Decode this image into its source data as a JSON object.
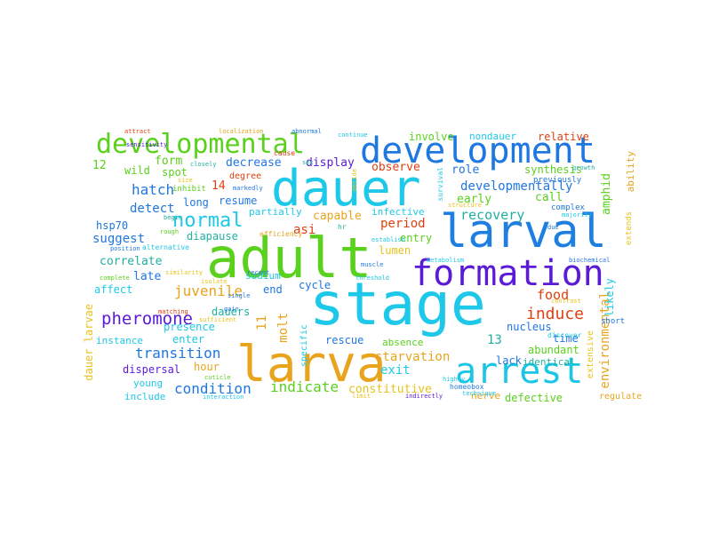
{
  "palette": {
    "blue": "#1f77e0",
    "cyan": "#19c6e6",
    "green": "#5ad11c",
    "purple": "#5a1ad6",
    "orange": "#e8a41c",
    "red": "#e04010",
    "teal": "#1fb0a0"
  },
  "words": [
    {
      "text": "stage",
      "color": "#1ec8e8"
    },
    {
      "text": "adult",
      "color": "#5ad11c"
    },
    {
      "text": "dauer",
      "color": "#1ec8e8"
    },
    {
      "text": "larva",
      "color": "#e8a41c"
    },
    {
      "text": "larval",
      "color": "#1f7fe0"
    },
    {
      "text": "development",
      "color": "#1f77e0"
    },
    {
      "text": "formation",
      "color": "#5a1ad6"
    },
    {
      "text": "arrest",
      "color": "#19c6e6"
    },
    {
      "text": "developmental",
      "color": "#5ad11c"
    },
    {
      "text": "normal",
      "color": "#1ec8e8"
    },
    {
      "text": "pheromone",
      "color": "#5a1ad6"
    },
    {
      "text": "induce",
      "color": "#e04010"
    },
    {
      "text": "juvenile",
      "color": "#e8a41c"
    },
    {
      "text": "transition",
      "color": "#1f77e0"
    },
    {
      "text": "condition",
      "color": "#1f77e0"
    },
    {
      "text": "indicate",
      "color": "#5ad11c"
    },
    {
      "text": "constitutive",
      "color": "#e8c21c"
    },
    {
      "text": "starvation",
      "color": "#e8a41c"
    },
    {
      "text": "environmental",
      "color": "#e8a41c"
    },
    {
      "text": "recovery",
      "color": "#1fb0a0"
    },
    {
      "text": "developmentally",
      "color": "#1f77e0"
    },
    {
      "text": "hatch",
      "color": "#1f77e0"
    },
    {
      "text": "detect",
      "color": "#1f77e0"
    },
    {
      "text": "suggest",
      "color": "#1f77e0"
    },
    {
      "text": "correlate",
      "color": "#1fb0a0"
    },
    {
      "text": "molt",
      "color": "#e8a41c"
    },
    {
      "text": "11",
      "color": "#e8a41c"
    },
    {
      "text": "period",
      "color": "#e04010"
    },
    {
      "text": "capable",
      "color": "#e8a41c"
    },
    {
      "text": "food",
      "color": "#e04010"
    },
    {
      "text": "asi",
      "color": "#e04010"
    },
    {
      "text": "decrease",
      "color": "#1f77e0"
    },
    {
      "text": "display",
      "color": "#5a1ad6"
    },
    {
      "text": "observe",
      "color": "#e04010"
    },
    {
      "text": "role",
      "color": "#1f77e0"
    },
    {
      "text": "form",
      "color": "#5ad11c"
    },
    {
      "text": "wild",
      "color": "#5ad11c"
    },
    {
      "text": "spot",
      "color": "#5ad11c"
    },
    {
      "text": "12",
      "color": "#5ad11c"
    },
    {
      "text": "14",
      "color": "#e04010"
    },
    {
      "text": "resume",
      "color": "#1f77e0"
    },
    {
      "text": "long",
      "color": "#1f77e0"
    },
    {
      "text": "early",
      "color": "#5ad11c"
    },
    {
      "text": "call",
      "color": "#5ad11c"
    },
    {
      "text": "synthesis",
      "color": "#5ad11c"
    },
    {
      "text": "relative",
      "color": "#e04010"
    },
    {
      "text": "involve",
      "color": "#5ad11c"
    },
    {
      "text": "nondauer",
      "color": "#1ec8e8"
    },
    {
      "text": "amphid",
      "color": "#5ad11c"
    },
    {
      "text": "hsp70",
      "color": "#1f77e0"
    },
    {
      "text": "diapause",
      "color": "#1fb0a0"
    },
    {
      "text": "partially",
      "color": "#1ec8e8"
    },
    {
      "text": "infective",
      "color": "#1ec8e8"
    },
    {
      "text": "entry",
      "color": "#5ad11c"
    },
    {
      "text": "lumen",
      "color": "#e8c21c"
    },
    {
      "text": "late",
      "color": "#1f77e0"
    },
    {
      "text": "affect",
      "color": "#1ec8e8"
    },
    {
      "text": "end",
      "color": "#1f77e0"
    },
    {
      "text": "cycle",
      "color": "#1f77e0"
    },
    {
      "text": "sodium",
      "color": "#1ec8e8"
    },
    {
      "text": "dauers",
      "color": "#1fb0a0"
    },
    {
      "text": "presence",
      "color": "#1ec8e8"
    },
    {
      "text": "enter",
      "color": "#1ec8e8"
    },
    {
      "text": "instance",
      "color": "#1ec8e8"
    },
    {
      "text": "rescue",
      "color": "#1f77e0"
    },
    {
      "text": "absence",
      "color": "#5ad11c"
    },
    {
      "text": "13",
      "color": "#1fb0a0"
    },
    {
      "text": "specific",
      "color": "#1ec8e8"
    },
    {
      "text": "hour",
      "color": "#e8a41c"
    },
    {
      "text": "dispersal",
      "color": "#5a1ad6"
    },
    {
      "text": "young",
      "color": "#1ec8e8"
    },
    {
      "text": "include",
      "color": "#1ec8e8"
    },
    {
      "text": "exit",
      "color": "#1ec8e8"
    },
    {
      "text": "lack",
      "color": "#1f77e0"
    },
    {
      "text": "abundant",
      "color": "#5ad11c"
    },
    {
      "text": "identical",
      "color": "#1fb0a0"
    },
    {
      "text": "nucleus",
      "color": "#1f77e0"
    },
    {
      "text": "time",
      "color": "#1f77e0"
    },
    {
      "text": "defective",
      "color": "#5ad11c"
    },
    {
      "text": "nerve",
      "color": "#e8a41c"
    },
    {
      "text": "likely",
      "color": "#1ec8e8"
    },
    {
      "text": "extensive",
      "color": "#e8c21c"
    },
    {
      "text": "dauer larvae",
      "color": "#e8c21c"
    },
    {
      "text": "ability",
      "color": "#e8a41c"
    },
    {
      "text": "extends",
      "color": "#e8c21c"
    },
    {
      "text": "complex",
      "color": "#1f77e0"
    },
    {
      "text": "previously",
      "color": "#1f77e0"
    },
    {
      "text": "regulate",
      "color": "#e8a41c"
    },
    {
      "text": "short",
      "color": "#1f77e0"
    },
    {
      "text": "discover",
      "color": "#1ec8e8"
    },
    {
      "text": "attract",
      "color": "#e04010"
    },
    {
      "text": "localization",
      "color": "#e8a41c"
    },
    {
      "text": "cause",
      "color": "#e04010"
    },
    {
      "text": "degree",
      "color": "#e04010"
    },
    {
      "text": "inhibit",
      "color": "#5ad11c"
    },
    {
      "text": "closely",
      "color": "#1fb0a0"
    },
    {
      "text": "size",
      "color": "#e8c21c"
    },
    {
      "text": "begin",
      "color": "#1fb0a0"
    },
    {
      "text": "markedly",
      "color": "#1f77e0"
    },
    {
      "text": "growth",
      "color": "#1fb0a0"
    },
    {
      "text": "majority",
      "color": "#1ec8e8"
    },
    {
      "text": "survival",
      "color": "#1ec8e8"
    },
    {
      "text": "homeobox",
      "color": "#1f77e0"
    },
    {
      "text": "efficiency",
      "color": "#e8a41c"
    },
    {
      "text": "alternative",
      "color": "#1ec8e8"
    },
    {
      "text": "position",
      "color": "#1f77e0"
    },
    {
      "text": "biochemical",
      "color": "#1f77e0"
    },
    {
      "text": "hr",
      "color": "#1fb0a0"
    },
    {
      "text": "recent",
      "color": "#1f77e0"
    },
    {
      "text": "similarity",
      "color": "#e8c21c"
    },
    {
      "text": "sufficient",
      "color": "#e8c21c"
    },
    {
      "text": "cuticle",
      "color": "#5ad11c"
    },
    {
      "text": "highly",
      "color": "#1ec8e8"
    },
    {
      "text": "indirectly",
      "color": "#5a1ad6"
    },
    {
      "text": "limit",
      "color": "#e8c21c"
    },
    {
      "text": "technique",
      "color": "#1ec8e8"
    },
    {
      "text": "interaction",
      "color": "#1ec8e8"
    },
    {
      "text": "threshold",
      "color": "#1ec8e8"
    },
    {
      "text": "muscle",
      "color": "#1f77e0"
    },
    {
      "text": "single",
      "color": "#1f77e0"
    },
    {
      "text": "gain",
      "color": "#1f77e0"
    },
    {
      "text": "contrast",
      "color": "#e8c21c"
    },
    {
      "text": "continue",
      "color": "#1ec8e8"
    },
    {
      "text": "abnormal",
      "color": "#1f77e0"
    },
    {
      "text": "sensitivity",
      "color": "#5a1ad6"
    },
    {
      "text": "isolate",
      "color": "#e8c21c"
    },
    {
      "text": "rough",
      "color": "#5ad11c"
    },
    {
      "text": "complete",
      "color": "#5ad11c"
    },
    {
      "text": "establish",
      "color": "#1ec8e8"
    },
    {
      "text": "matching",
      "color": "#e04010"
    },
    {
      "text": "metabolism",
      "color": "#1ec8e8"
    },
    {
      "text": "structure",
      "color": "#e8c21c"
    },
    {
      "text": "sex",
      "color": "#1fb0a0"
    },
    {
      "text": "decide",
      "color": "#e8c21c"
    },
    {
      "text": "due",
      "color": "#1f77e0"
    }
  ]
}
